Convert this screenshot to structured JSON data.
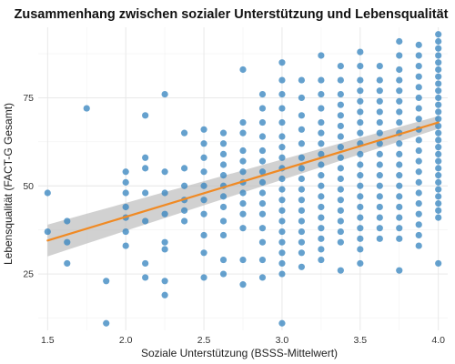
{
  "chart_data": {
    "type": "scatter",
    "title": "Zusammenhang zwischen sozialer Unterstützung und Lebensqualität",
    "xlabel": "Soziale Unterstützung (BSSS-Mittelwert)",
    "ylabel": "Lebensqualität (FACT-G Gesamt)",
    "xlim": [
      1.44,
      4.06
    ],
    "ylim": [
      9,
      95
    ],
    "x_ticks": [
      1.5,
      2.0,
      2.5,
      3.0,
      3.5,
      4.0
    ],
    "x_tick_labels": [
      "1.5",
      "2.0",
      "2.5",
      "3.0",
      "3.5",
      "4.0"
    ],
    "y_ticks": [
      25,
      50,
      75
    ],
    "y_tick_labels": [
      "25",
      "50",
      "75"
    ],
    "grid": true,
    "legend": "none",
    "colors": {
      "points": "#3a87c0",
      "fit_line": "#f08a24",
      "ci_band": "#bdbdbd"
    },
    "trend": {
      "type": "linear",
      "x": [
        1.5,
        4.0
      ],
      "y": [
        34.5,
        68.0
      ],
      "ci_halfwidth": [
        4.5,
        1.8
      ]
    },
    "points": [
      {
        "x": 1.5,
        "y": 48
      },
      {
        "x": 1.5,
        "y": 37
      },
      {
        "x": 1.625,
        "y": 40
      },
      {
        "x": 1.625,
        "y": 34
      },
      {
        "x": 1.625,
        "y": 28
      },
      {
        "x": 1.75,
        "y": 72
      },
      {
        "x": 1.875,
        "y": 23
      },
      {
        "x": 1.875,
        "y": 11
      },
      {
        "x": 2.0,
        "y": 54
      },
      {
        "x": 2.0,
        "y": 51
      },
      {
        "x": 2.0,
        "y": 48
      },
      {
        "x": 2.0,
        "y": 44
      },
      {
        "x": 2.0,
        "y": 41
      },
      {
        "x": 2.0,
        "y": 37
      },
      {
        "x": 2.0,
        "y": 33
      },
      {
        "x": 2.125,
        "y": 70
      },
      {
        "x": 2.125,
        "y": 58
      },
      {
        "x": 2.125,
        "y": 55
      },
      {
        "x": 2.125,
        "y": 48
      },
      {
        "x": 2.125,
        "y": 40
      },
      {
        "x": 2.125,
        "y": 28
      },
      {
        "x": 2.125,
        "y": 24
      },
      {
        "x": 2.25,
        "y": 76
      },
      {
        "x": 2.25,
        "y": 54
      },
      {
        "x": 2.25,
        "y": 48
      },
      {
        "x": 2.25,
        "y": 42
      },
      {
        "x": 2.25,
        "y": 34
      },
      {
        "x": 2.25,
        "y": 32
      },
      {
        "x": 2.25,
        "y": 23
      },
      {
        "x": 2.25,
        "y": 19
      },
      {
        "x": 2.375,
        "y": 65
      },
      {
        "x": 2.375,
        "y": 55
      },
      {
        "x": 2.375,
        "y": 50
      },
      {
        "x": 2.375,
        "y": 46
      },
      {
        "x": 2.375,
        "y": 43
      },
      {
        "x": 2.375,
        "y": 40
      },
      {
        "x": 2.5,
        "y": 66
      },
      {
        "x": 2.5,
        "y": 62
      },
      {
        "x": 2.5,
        "y": 58
      },
      {
        "x": 2.5,
        "y": 54
      },
      {
        "x": 2.5,
        "y": 50
      },
      {
        "x": 2.5,
        "y": 46
      },
      {
        "x": 2.5,
        "y": 42
      },
      {
        "x": 2.5,
        "y": 36
      },
      {
        "x": 2.5,
        "y": 31
      },
      {
        "x": 2.5,
        "y": 24
      },
      {
        "x": 2.625,
        "y": 65
      },
      {
        "x": 2.625,
        "y": 62
      },
      {
        "x": 2.625,
        "y": 59
      },
      {
        "x": 2.625,
        "y": 56
      },
      {
        "x": 2.625,
        "y": 53
      },
      {
        "x": 2.625,
        "y": 50
      },
      {
        "x": 2.625,
        "y": 47
      },
      {
        "x": 2.625,
        "y": 44
      },
      {
        "x": 2.625,
        "y": 40
      },
      {
        "x": 2.625,
        "y": 36
      },
      {
        "x": 2.625,
        "y": 29
      },
      {
        "x": 2.625,
        "y": 25
      },
      {
        "x": 2.75,
        "y": 83
      },
      {
        "x": 2.75,
        "y": 68
      },
      {
        "x": 2.75,
        "y": 65
      },
      {
        "x": 2.75,
        "y": 60
      },
      {
        "x": 2.75,
        "y": 57
      },
      {
        "x": 2.75,
        "y": 54
      },
      {
        "x": 2.75,
        "y": 51
      },
      {
        "x": 2.75,
        "y": 48
      },
      {
        "x": 2.75,
        "y": 45
      },
      {
        "x": 2.75,
        "y": 42
      },
      {
        "x": 2.75,
        "y": 38
      },
      {
        "x": 2.75,
        "y": 29
      },
      {
        "x": 2.75,
        "y": 22
      },
      {
        "x": 2.875,
        "y": 76
      },
      {
        "x": 2.875,
        "y": 72
      },
      {
        "x": 2.875,
        "y": 68
      },
      {
        "x": 2.875,
        "y": 64
      },
      {
        "x": 2.875,
        "y": 60
      },
      {
        "x": 2.875,
        "y": 57
      },
      {
        "x": 2.875,
        "y": 54
      },
      {
        "x": 2.875,
        "y": 51
      },
      {
        "x": 2.875,
        "y": 48
      },
      {
        "x": 2.875,
        "y": 45
      },
      {
        "x": 2.875,
        "y": 42
      },
      {
        "x": 2.875,
        "y": 38
      },
      {
        "x": 2.875,
        "y": 34
      },
      {
        "x": 2.875,
        "y": 29
      },
      {
        "x": 2.875,
        "y": 24
      },
      {
        "x": 3.0,
        "y": 85
      },
      {
        "x": 3.0,
        "y": 80
      },
      {
        "x": 3.0,
        "y": 76
      },
      {
        "x": 3.0,
        "y": 72
      },
      {
        "x": 3.0,
        "y": 68
      },
      {
        "x": 3.0,
        "y": 64
      },
      {
        "x": 3.0,
        "y": 61
      },
      {
        "x": 3.0,
        "y": 58
      },
      {
        "x": 3.0,
        "y": 55
      },
      {
        "x": 3.0,
        "y": 52
      },
      {
        "x": 3.0,
        "y": 49
      },
      {
        "x": 3.0,
        "y": 46
      },
      {
        "x": 3.0,
        "y": 43
      },
      {
        "x": 3.0,
        "y": 40
      },
      {
        "x": 3.0,
        "y": 37
      },
      {
        "x": 3.0,
        "y": 34
      },
      {
        "x": 3.0,
        "y": 31
      },
      {
        "x": 3.0,
        "y": 28
      },
      {
        "x": 3.0,
        "y": 25
      },
      {
        "x": 3.0,
        "y": 11
      },
      {
        "x": 3.125,
        "y": 80
      },
      {
        "x": 3.125,
        "y": 75
      },
      {
        "x": 3.125,
        "y": 70
      },
      {
        "x": 3.125,
        "y": 66
      },
      {
        "x": 3.125,
        "y": 62
      },
      {
        "x": 3.125,
        "y": 58
      },
      {
        "x": 3.125,
        "y": 55
      },
      {
        "x": 3.125,
        "y": 52
      },
      {
        "x": 3.125,
        "y": 49
      },
      {
        "x": 3.125,
        "y": 46
      },
      {
        "x": 3.125,
        "y": 43
      },
      {
        "x": 3.125,
        "y": 40
      },
      {
        "x": 3.125,
        "y": 37
      },
      {
        "x": 3.125,
        "y": 34
      },
      {
        "x": 3.125,
        "y": 31
      },
      {
        "x": 3.125,
        "y": 27
      },
      {
        "x": 3.25,
        "y": 87
      },
      {
        "x": 3.25,
        "y": 80
      },
      {
        "x": 3.25,
        "y": 76
      },
      {
        "x": 3.25,
        "y": 72
      },
      {
        "x": 3.25,
        "y": 68
      },
      {
        "x": 3.25,
        "y": 65
      },
      {
        "x": 3.25,
        "y": 62
      },
      {
        "x": 3.25,
        "y": 59
      },
      {
        "x": 3.25,
        "y": 56
      },
      {
        "x": 3.25,
        "y": 53
      },
      {
        "x": 3.25,
        "y": 50
      },
      {
        "x": 3.25,
        "y": 47
      },
      {
        "x": 3.25,
        "y": 44
      },
      {
        "x": 3.25,
        "y": 41
      },
      {
        "x": 3.25,
        "y": 38
      },
      {
        "x": 3.25,
        "y": 35
      },
      {
        "x": 3.25,
        "y": 32
      },
      {
        "x": 3.25,
        "y": 29
      },
      {
        "x": 3.375,
        "y": 84
      },
      {
        "x": 3.375,
        "y": 80
      },
      {
        "x": 3.375,
        "y": 76
      },
      {
        "x": 3.375,
        "y": 73
      },
      {
        "x": 3.375,
        "y": 70
      },
      {
        "x": 3.375,
        "y": 67
      },
      {
        "x": 3.375,
        "y": 64
      },
      {
        "x": 3.375,
        "y": 61
      },
      {
        "x": 3.375,
        "y": 58
      },
      {
        "x": 3.375,
        "y": 55
      },
      {
        "x": 3.375,
        "y": 52
      },
      {
        "x": 3.375,
        "y": 49
      },
      {
        "x": 3.375,
        "y": 46
      },
      {
        "x": 3.375,
        "y": 43
      },
      {
        "x": 3.375,
        "y": 40
      },
      {
        "x": 3.375,
        "y": 37
      },
      {
        "x": 3.375,
        "y": 34
      },
      {
        "x": 3.375,
        "y": 26
      },
      {
        "x": 3.5,
        "y": 88
      },
      {
        "x": 3.5,
        "y": 84
      },
      {
        "x": 3.5,
        "y": 80
      },
      {
        "x": 3.5,
        "y": 77
      },
      {
        "x": 3.5,
        "y": 74
      },
      {
        "x": 3.5,
        "y": 71
      },
      {
        "x": 3.5,
        "y": 68
      },
      {
        "x": 3.5,
        "y": 65
      },
      {
        "x": 3.5,
        "y": 62
      },
      {
        "x": 3.5,
        "y": 59
      },
      {
        "x": 3.5,
        "y": 56
      },
      {
        "x": 3.5,
        "y": 53
      },
      {
        "x": 3.5,
        "y": 50
      },
      {
        "x": 3.5,
        "y": 47
      },
      {
        "x": 3.5,
        "y": 44
      },
      {
        "x": 3.5,
        "y": 41
      },
      {
        "x": 3.5,
        "y": 38
      },
      {
        "x": 3.5,
        "y": 35
      },
      {
        "x": 3.5,
        "y": 32
      },
      {
        "x": 3.5,
        "y": 28
      },
      {
        "x": 3.625,
        "y": 84
      },
      {
        "x": 3.625,
        "y": 80
      },
      {
        "x": 3.625,
        "y": 77
      },
      {
        "x": 3.625,
        "y": 74
      },
      {
        "x": 3.625,
        "y": 71
      },
      {
        "x": 3.625,
        "y": 68
      },
      {
        "x": 3.625,
        "y": 65
      },
      {
        "x": 3.625,
        "y": 62
      },
      {
        "x": 3.625,
        "y": 59
      },
      {
        "x": 3.625,
        "y": 56
      },
      {
        "x": 3.625,
        "y": 53
      },
      {
        "x": 3.625,
        "y": 50
      },
      {
        "x": 3.625,
        "y": 47
      },
      {
        "x": 3.625,
        "y": 44
      },
      {
        "x": 3.625,
        "y": 41
      },
      {
        "x": 3.625,
        "y": 38
      },
      {
        "x": 3.625,
        "y": 35
      },
      {
        "x": 3.75,
        "y": 91
      },
      {
        "x": 3.75,
        "y": 87
      },
      {
        "x": 3.75,
        "y": 83
      },
      {
        "x": 3.75,
        "y": 80
      },
      {
        "x": 3.75,
        "y": 77
      },
      {
        "x": 3.75,
        "y": 74
      },
      {
        "x": 3.75,
        "y": 71
      },
      {
        "x": 3.75,
        "y": 68
      },
      {
        "x": 3.75,
        "y": 65
      },
      {
        "x": 3.75,
        "y": 62
      },
      {
        "x": 3.75,
        "y": 59
      },
      {
        "x": 3.75,
        "y": 56
      },
      {
        "x": 3.75,
        "y": 53
      },
      {
        "x": 3.75,
        "y": 50
      },
      {
        "x": 3.75,
        "y": 47
      },
      {
        "x": 3.75,
        "y": 44
      },
      {
        "x": 3.75,
        "y": 41
      },
      {
        "x": 3.75,
        "y": 38
      },
      {
        "x": 3.75,
        "y": 35
      },
      {
        "x": 3.75,
        "y": 26
      },
      {
        "x": 3.875,
        "y": 90
      },
      {
        "x": 3.875,
        "y": 87
      },
      {
        "x": 3.875,
        "y": 84
      },
      {
        "x": 3.875,
        "y": 81
      },
      {
        "x": 3.875,
        "y": 78
      },
      {
        "x": 3.875,
        "y": 75
      },
      {
        "x": 3.875,
        "y": 72
      },
      {
        "x": 3.875,
        "y": 69
      },
      {
        "x": 3.875,
        "y": 66
      },
      {
        "x": 3.875,
        "y": 63
      },
      {
        "x": 3.875,
        "y": 60
      },
      {
        "x": 3.875,
        "y": 57
      },
      {
        "x": 3.875,
        "y": 54
      },
      {
        "x": 3.875,
        "y": 51
      },
      {
        "x": 3.875,
        "y": 48
      },
      {
        "x": 3.875,
        "y": 45
      },
      {
        "x": 3.875,
        "y": 42
      },
      {
        "x": 3.875,
        "y": 39
      },
      {
        "x": 3.875,
        "y": 36
      },
      {
        "x": 3.875,
        "y": 33
      },
      {
        "x": 4.0,
        "y": 93
      },
      {
        "x": 4.0,
        "y": 91
      },
      {
        "x": 4.0,
        "y": 89
      },
      {
        "x": 4.0,
        "y": 87
      },
      {
        "x": 4.0,
        "y": 85
      },
      {
        "x": 4.0,
        "y": 83
      },
      {
        "x": 4.0,
        "y": 81
      },
      {
        "x": 4.0,
        "y": 79
      },
      {
        "x": 4.0,
        "y": 77
      },
      {
        "x": 4.0,
        "y": 75
      },
      {
        "x": 4.0,
        "y": 73
      },
      {
        "x": 4.0,
        "y": 71
      },
      {
        "x": 4.0,
        "y": 69
      },
      {
        "x": 4.0,
        "y": 67
      },
      {
        "x": 4.0,
        "y": 65
      },
      {
        "x": 4.0,
        "y": 63
      },
      {
        "x": 4.0,
        "y": 61
      },
      {
        "x": 4.0,
        "y": 59
      },
      {
        "x": 4.0,
        "y": 57
      },
      {
        "x": 4.0,
        "y": 55
      },
      {
        "x": 4.0,
        "y": 53
      },
      {
        "x": 4.0,
        "y": 51
      },
      {
        "x": 4.0,
        "y": 49
      },
      {
        "x": 4.0,
        "y": 47
      },
      {
        "x": 4.0,
        "y": 45
      },
      {
        "x": 4.0,
        "y": 43
      },
      {
        "x": 4.0,
        "y": 41
      },
      {
        "x": 4.0,
        "y": 28
      }
    ]
  }
}
